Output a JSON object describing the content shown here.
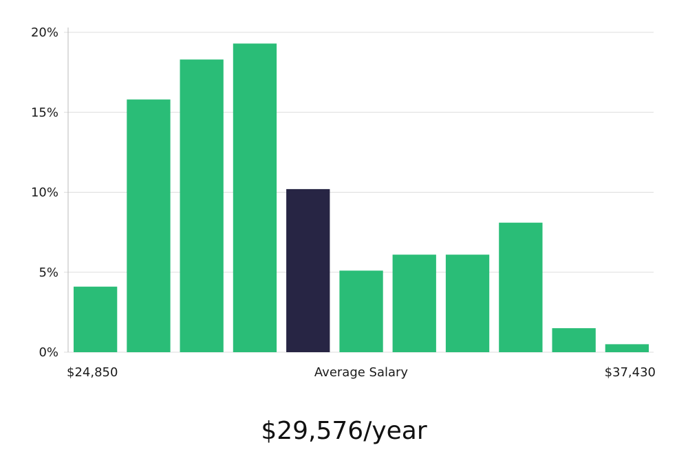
{
  "chart_data": {
    "type": "bar",
    "title": "",
    "ylabel": "",
    "xlabel": "Average Salary",
    "ylim": [
      0,
      20
    ],
    "y_ticks": [
      0,
      5,
      10,
      15,
      20
    ],
    "y_tick_labels": [
      "0%",
      "5%",
      "10%",
      "15%",
      "20%"
    ],
    "x_left_label": "$24,850",
    "x_center_label": "Average Salary",
    "x_right_label": "$37,430",
    "values": [
      4.1,
      15.8,
      18.3,
      19.3,
      10.2,
      5.1,
      6.1,
      6.1,
      8.1,
      1.5,
      0.5
    ],
    "highlight_index": 4,
    "grid": true
  },
  "colors": {
    "bar": "#2abd77",
    "highlight": "#272544",
    "grid": "#dddddd",
    "axis": "#bbbbbb"
  },
  "summary": {
    "salary_text": "$29,576/year"
  }
}
